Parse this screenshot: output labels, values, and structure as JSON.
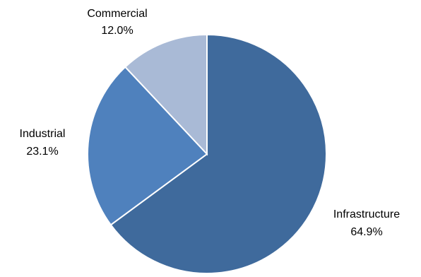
{
  "chart_data": {
    "type": "pie",
    "title": "",
    "start_angle_deg": 0,
    "direction": "clockwise",
    "slices": [
      {
        "label": "Infrastructure",
        "value": 64.9,
        "value_label": "64.9%",
        "color": "#3F6A9C"
      },
      {
        "label": "Industrial",
        "value": 23.1,
        "value_label": "23.1%",
        "color": "#4F81BD"
      },
      {
        "label": "Commercial",
        "value": 12.0,
        "value_label": "12.0%",
        "color": "#A9BAD6"
      }
    ]
  }
}
